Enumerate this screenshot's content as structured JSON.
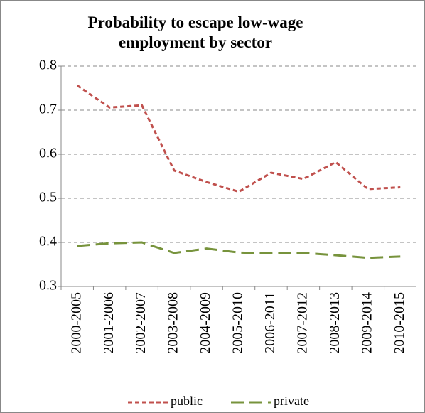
{
  "chart_data": {
    "type": "line",
    "title": "Probability to escape low-wage employment by sector",
    "categories": [
      "2000-2005",
      "2001-2006",
      "2002-2007",
      "2003-2008",
      "2004-2009",
      "2005-2010",
      "2006-2011",
      "2007-2012",
      "2008-2013",
      "2009-2014",
      "2010-2015"
    ],
    "series": [
      {
        "name": "public",
        "color": "#c0504d",
        "dash": "6 4",
        "values": [
          0.756,
          0.706,
          0.711,
          0.563,
          0.537,
          0.515,
          0.558,
          0.544,
          0.582,
          0.521,
          0.525
        ]
      },
      {
        "name": "private",
        "color": "#77933c",
        "dash": "18 8",
        "values": [
          0.392,
          0.398,
          0.4,
          0.376,
          0.386,
          0.377,
          0.375,
          0.376,
          0.371,
          0.365,
          0.368
        ]
      }
    ],
    "ylim": [
      0.3,
      0.8
    ],
    "yticks": [
      0.3,
      0.4,
      0.5,
      0.6,
      0.7,
      0.8
    ],
    "grid": true,
    "legend": "bottom"
  }
}
